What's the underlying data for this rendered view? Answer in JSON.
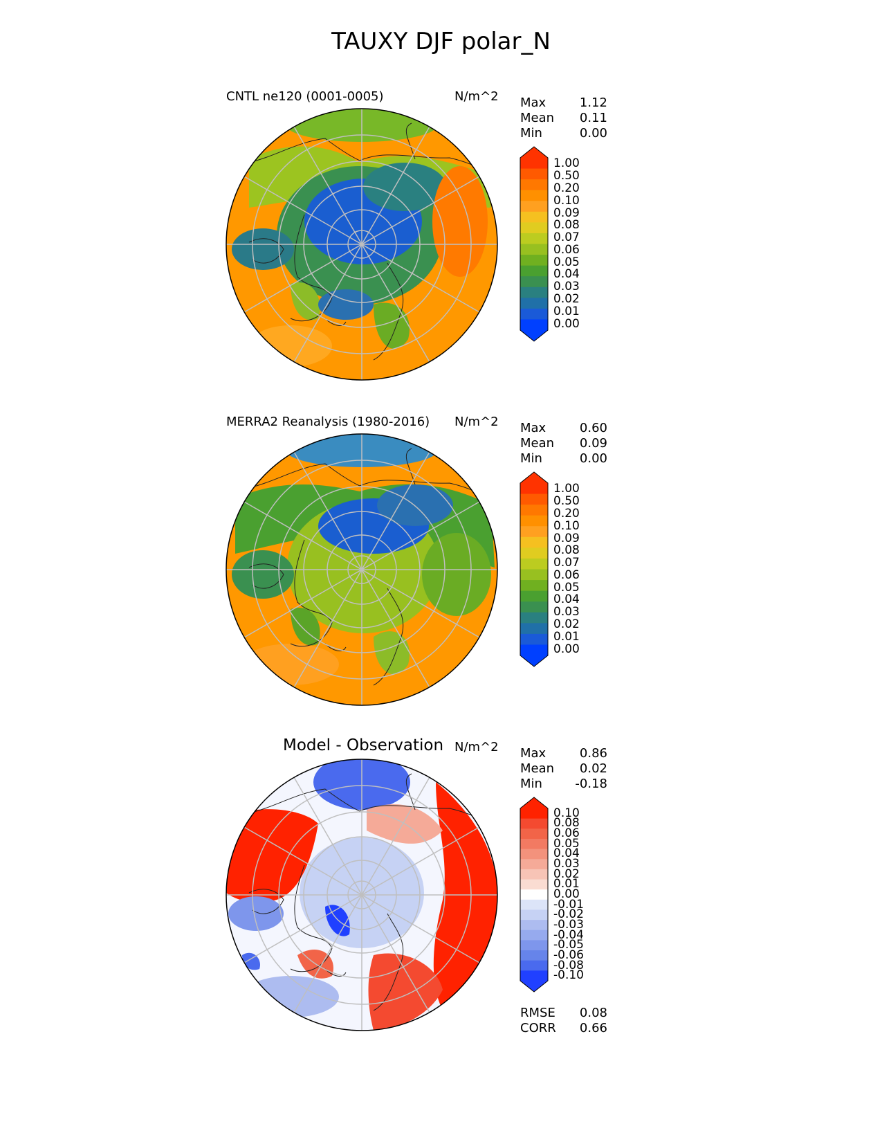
{
  "figure_title": "TAUXY DJF polar_N",
  "panels": [
    {
      "id": "test",
      "label": "CNTL ne120 (0001-0005)",
      "units": "N/m^2",
      "stats": [
        {
          "name": "Max",
          "value": "1.12"
        },
        {
          "name": "Mean",
          "value": "0.11"
        },
        {
          "name": "Min",
          "value": "0.00"
        }
      ],
      "colorbar_ticks": [
        "1.00",
        "0.50",
        "0.20",
        "0.10",
        "0.09",
        "0.08",
        "0.07",
        "0.06",
        "0.05",
        "0.04",
        "0.03",
        "0.02",
        "0.01",
        "0.00"
      ]
    },
    {
      "id": "reference",
      "label": "MERRA2 Reanalysis (1980-2016)",
      "units": "N/m^2",
      "stats": [
        {
          "name": "Max",
          "value": "0.60"
        },
        {
          "name": "Mean",
          "value": "0.09"
        },
        {
          "name": "Min",
          "value": "0.00"
        }
      ],
      "colorbar_ticks": [
        "1.00",
        "0.50",
        "0.20",
        "0.10",
        "0.09",
        "0.08",
        "0.07",
        "0.06",
        "0.05",
        "0.04",
        "0.03",
        "0.02",
        "0.01",
        "0.00"
      ]
    },
    {
      "id": "difference",
      "label": "Model - Observation",
      "units": "N/m^2",
      "stats": [
        {
          "name": "Max",
          "value": "0.86"
        },
        {
          "name": "Mean",
          "value": "0.02"
        },
        {
          "name": "Min",
          "value": "-0.18"
        }
      ],
      "colorbar_ticks": [
        "0.10",
        "0.08",
        "0.06",
        "0.05",
        "0.04",
        "0.03",
        "0.02",
        "0.01",
        "0.00",
        "-0.01",
        "-0.02",
        "-0.03",
        "-0.04",
        "-0.05",
        "-0.06",
        "-0.08",
        "-0.10"
      ],
      "metrics": [
        {
          "name": "RMSE",
          "value": "0.08"
        },
        {
          "name": "CORR",
          "value": "0.66"
        }
      ]
    }
  ],
  "colors": {
    "field_scale": [
      "#ff3300",
      "#ff5a00",
      "#ff7800",
      "#ff9000",
      "#ffa020",
      "#f5c020",
      "#e0cc20",
      "#bccc20",
      "#98c020",
      "#70b020",
      "#4aa030",
      "#3a9050",
      "#2a8080",
      "#2070a8",
      "#1a5ad8",
      "#0040ff"
    ],
    "diff_scale": [
      "#ff2200",
      "#f44a30",
      "#f26448",
      "#f27a62",
      "#f3927c",
      "#f5aa98",
      "#f7c4b6",
      "#fadcd2",
      "#ffffff",
      "#dce4f8",
      "#c6d2f4",
      "#adbcf0",
      "#96aaee",
      "#7e96ec",
      "#6684ea",
      "#4a6aee",
      "#2040ff"
    ],
    "ocean_fill": "#ff9800",
    "arctic_fill": "#1a5ed0",
    "grid": "#bfbfbf"
  }
}
